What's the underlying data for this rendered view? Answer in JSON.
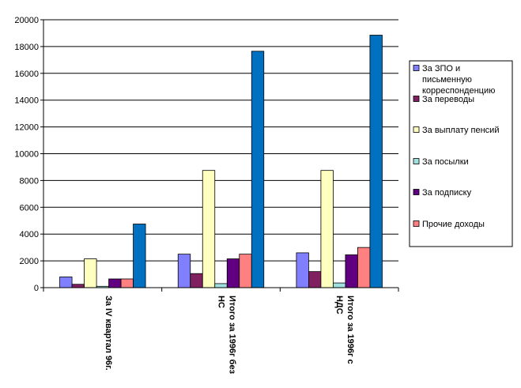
{
  "chart_data": {
    "type": "bar",
    "title": "",
    "xlabel": "",
    "ylabel": "",
    "ylim": [
      0,
      20000
    ],
    "yticks": [
      0,
      2000,
      4000,
      6000,
      8000,
      10000,
      12000,
      14000,
      16000,
      18000,
      20000
    ],
    "grid": true,
    "legend_position": "right",
    "categories": [
      [
        "За IV квартал 96г."
      ],
      [
        "Итого за 1996г без",
        "НС"
      ],
      [
        "Итого за 1996г с",
        "НДС"
      ]
    ],
    "series": [
      {
        "name": "За ЗПО и письменную корреспонденцию",
        "legend_lines": [
          "За ЗПО и",
          "письменную",
          "корреспонденцию"
        ],
        "color": "#8080ff",
        "values": [
          800,
          2500,
          2600
        ]
      },
      {
        "name": "За переводы",
        "legend_lines": [
          "За переводы"
        ],
        "color": "#802060",
        "values": [
          250,
          1050,
          1200
        ]
      },
      {
        "name": "За выплату пенсий",
        "legend_lines": [
          "За выплату пенсий"
        ],
        "color": "#ffffc0",
        "values": [
          2150,
          8750,
          8750
        ]
      },
      {
        "name": "За посылки",
        "legend_lines": [
          "За посылки"
        ],
        "color": "#a0e0e0",
        "values": [
          100,
          300,
          350
        ]
      },
      {
        "name": "За подписку",
        "legend_lines": [
          "За подписку"
        ],
        "color": "#600080",
        "values": [
          650,
          2150,
          2450
        ]
      },
      {
        "name": "Прочие доходы",
        "legend_lines": [
          "Прочие доходы"
        ],
        "color": "#ff8080",
        "values": [
          650,
          2500,
          3000
        ]
      },
      {
        "name": "",
        "legend_lines": [],
        "color": "#0070c0",
        "values": [
          4750,
          17650,
          18850
        ]
      }
    ]
  }
}
